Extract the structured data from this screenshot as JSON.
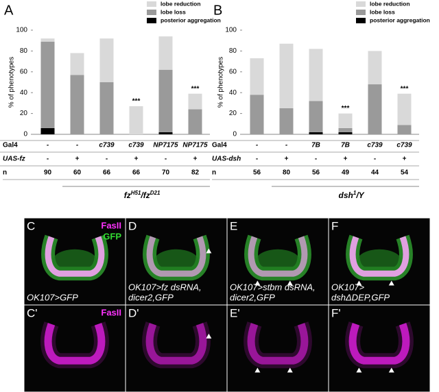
{
  "chart_data": [
    {
      "type": "bar",
      "stacked": true,
      "panel_label": "A",
      "ylabel": "% of phenotypes",
      "categories_label": "Gal4",
      "categories": [
        "-",
        "-",
        "c739",
        "c739",
        "NP7175",
        "NP7175"
      ],
      "ylim": [
        0,
        100
      ],
      "yticks": [
        0,
        20,
        40,
        60,
        80,
        100
      ],
      "series": [
        {
          "name": "lobe reduction",
          "color": "#d9d9d9",
          "values": [
            3,
            21,
            42,
            27,
            32,
            15
          ]
        },
        {
          "name": "lobe loss",
          "color": "#9a9a9a",
          "values": [
            83,
            57,
            50,
            0,
            60,
            24
          ]
        },
        {
          "name": "posterior aggregation",
          "color": "#000000",
          "values": [
            6,
            0,
            0,
            0,
            2,
            0
          ]
        }
      ],
      "annotations": [
        {
          "index": 3,
          "text": "***"
        },
        {
          "index": 5,
          "text": "***"
        }
      ],
      "rows": [
        {
          "label": "UAS-fz",
          "values": [
            "-",
            "+",
            "-",
            "+",
            "-",
            "+"
          ]
        },
        {
          "label": "n",
          "values": [
            90,
            60,
            66,
            66,
            70,
            82
          ]
        }
      ],
      "genotype": [
        {
          "text": "fz"
        },
        {
          "text": "H51",
          "sup": true
        },
        {
          "text": "/fz"
        },
        {
          "text": "D21",
          "sup": true
        }
      ]
    },
    {
      "type": "bar",
      "stacked": true,
      "panel_label": "B",
      "ylabel": "% of phenotypes",
      "categories_label": "Gal4",
      "categories": [
        "-",
        "-",
        "7B",
        "7B",
        "c739",
        "c739"
      ],
      "ylim": [
        0,
        100
      ],
      "yticks": [
        0,
        20,
        40,
        60,
        80,
        100
      ],
      "series": [
        {
          "name": "lobe reduction",
          "color": "#d9d9d9",
          "values": [
            35,
            62,
            50,
            14,
            32,
            30
          ]
        },
        {
          "name": "lobe loss",
          "color": "#9a9a9a",
          "values": [
            38,
            25,
            30,
            4,
            48,
            9
          ]
        },
        {
          "name": "posterior aggregation",
          "color": "#000000",
          "values": [
            0,
            0,
            2,
            2,
            0,
            0
          ]
        }
      ],
      "annotations": [
        {
          "index": 3,
          "text": "***"
        },
        {
          "index": 5,
          "text": "***"
        }
      ],
      "rows": [
        {
          "label": "UAS-dsh",
          "values": [
            "-",
            "+",
            "-",
            "+",
            "-",
            "+"
          ]
        },
        {
          "label": "n",
          "values": [
            56,
            80,
            56,
            49,
            44,
            54
          ]
        }
      ],
      "genotype": [
        {
          "text": "dsh"
        },
        {
          "text": "1",
          "sup": true
        },
        {
          "text": "/Y"
        }
      ]
    }
  ],
  "panels": [
    {
      "label": "C",
      "stains": [
        {
          "text": "FasII",
          "color": "#ff33ff"
        },
        {
          "text": "GFP",
          "color": "#33dd33"
        }
      ],
      "caption": [
        "OK107>GFP"
      ]
    },
    {
      "label": "D",
      "caption": [
        "OK107>fz dsRNA,",
        "dicer2,GFP"
      ]
    },
    {
      "label": "E",
      "caption": [
        "OK107>stbm dsRNA,",
        "dicer2,GFP"
      ]
    },
    {
      "label": "F",
      "caption": [
        "OK107>",
        "dshΔDEP,GFP"
      ]
    },
    {
      "label": "C'",
      "stains": [
        {
          "text": "FasII",
          "color": "#ff33ff"
        }
      ]
    },
    {
      "label": "D'"
    },
    {
      "label": "E'"
    },
    {
      "label": "F'"
    }
  ]
}
